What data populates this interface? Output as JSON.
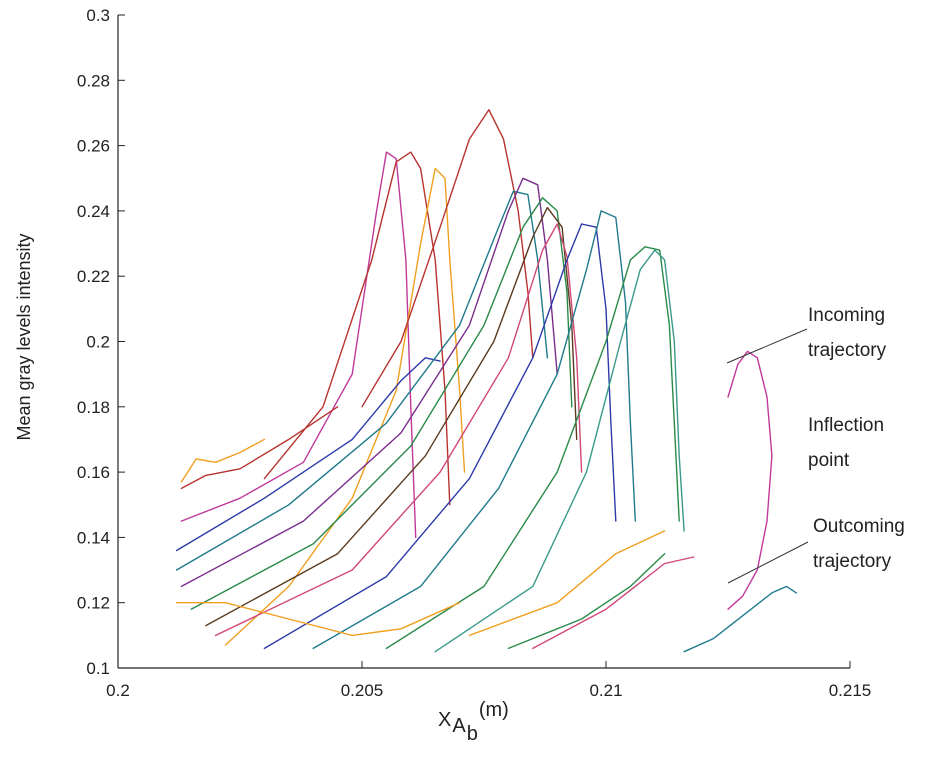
{
  "chart_data": {
    "type": "line",
    "title": "",
    "xlabel": {
      "main": "X",
      "sub1": "A",
      "sub2": "b",
      "unit": "(m)"
    },
    "ylabel": "Mean gray levels intensity",
    "xlim": [
      0.2,
      0.215
    ],
    "ylim": [
      0.1,
      0.3
    ],
    "x_ticks": [
      "0.2",
      "0.205",
      "0.21",
      "0.215"
    ],
    "y_ticks": [
      "0.1",
      "0.12",
      "0.14",
      "0.16",
      "0.18",
      "0.2",
      "0.22",
      "0.24",
      "0.26",
      "0.28",
      "0.3"
    ],
    "grid": false,
    "legend": "none",
    "colors": [
      "#c0399a",
      "#b8332f",
      "#f0a020",
      "#2c3aa8",
      "#2a8a4a",
      "#1f7a8c",
      "#5a3b1f",
      "#7a2d8c",
      "#d04878",
      "#3a9a8a"
    ],
    "series": [
      {
        "color": "#c0399a",
        "points": [
          [
            0.2013,
            0.145
          ],
          [
            0.2025,
            0.152
          ],
          [
            0.2038,
            0.163
          ],
          [
            0.2048,
            0.19
          ],
          [
            0.2053,
            0.24
          ],
          [
            0.2055,
            0.258
          ],
          [
            0.2057,
            0.256
          ],
          [
            0.2059,
            0.225
          ],
          [
            0.206,
            0.18
          ],
          [
            0.2061,
            0.14
          ]
        ]
      },
      {
        "color": "#b8332f",
        "points": [
          [
            0.203,
            0.158
          ],
          [
            0.2042,
            0.18
          ],
          [
            0.2052,
            0.225
          ],
          [
            0.2057,
            0.255
          ],
          [
            0.206,
            0.258
          ],
          [
            0.2062,
            0.253
          ],
          [
            0.2065,
            0.225
          ],
          [
            0.2067,
            0.185
          ],
          [
            0.2068,
            0.15
          ]
        ]
      },
      {
        "color": "#f0a020",
        "points": [
          [
            0.2022,
            0.107
          ],
          [
            0.2035,
            0.125
          ],
          [
            0.2048,
            0.152
          ],
          [
            0.2057,
            0.185
          ],
          [
            0.2062,
            0.23
          ],
          [
            0.2065,
            0.253
          ],
          [
            0.2067,
            0.25
          ],
          [
            0.2068,
            0.225
          ],
          [
            0.207,
            0.185
          ],
          [
            0.2071,
            0.16
          ]
        ]
      },
      {
        "color": "#b8332f",
        "points": [
          [
            0.205,
            0.18
          ],
          [
            0.2058,
            0.2
          ],
          [
            0.2066,
            0.235
          ],
          [
            0.2072,
            0.262
          ],
          [
            0.2076,
            0.271
          ],
          [
            0.2079,
            0.262
          ],
          [
            0.2082,
            0.24
          ],
          [
            0.2084,
            0.215
          ],
          [
            0.2085,
            0.195
          ]
        ]
      },
      {
        "color": "#2c3aa8",
        "points": [
          [
            0.2012,
            0.136
          ],
          [
            0.203,
            0.152
          ],
          [
            0.2048,
            0.17
          ],
          [
            0.2058,
            0.188
          ],
          [
            0.2063,
            0.195
          ],
          [
            0.2066,
            0.194
          ]
        ]
      },
      {
        "color": "#1f7a8c",
        "points": [
          [
            0.2012,
            0.13
          ],
          [
            0.2035,
            0.15
          ],
          [
            0.2055,
            0.175
          ],
          [
            0.207,
            0.205
          ],
          [
            0.2078,
            0.235
          ],
          [
            0.2081,
            0.246
          ],
          [
            0.2084,
            0.245
          ],
          [
            0.2086,
            0.225
          ],
          [
            0.2088,
            0.195
          ]
        ]
      },
      {
        "color": "#7a2d8c",
        "points": [
          [
            0.2013,
            0.125
          ],
          [
            0.2038,
            0.145
          ],
          [
            0.2058,
            0.172
          ],
          [
            0.2072,
            0.205
          ],
          [
            0.208,
            0.24
          ],
          [
            0.2083,
            0.25
          ],
          [
            0.2086,
            0.248
          ],
          [
            0.2088,
            0.225
          ],
          [
            0.209,
            0.19
          ]
        ]
      },
      {
        "color": "#2a8a4a",
        "points": [
          [
            0.2015,
            0.118
          ],
          [
            0.204,
            0.138
          ],
          [
            0.206,
            0.168
          ],
          [
            0.2075,
            0.205
          ],
          [
            0.2083,
            0.235
          ],
          [
            0.2087,
            0.244
          ],
          [
            0.209,
            0.24
          ],
          [
            0.2092,
            0.215
          ],
          [
            0.2093,
            0.18
          ]
        ]
      },
      {
        "color": "#5a3b1f",
        "points": [
          [
            0.2018,
            0.113
          ],
          [
            0.2045,
            0.135
          ],
          [
            0.2063,
            0.165
          ],
          [
            0.2077,
            0.2
          ],
          [
            0.2085,
            0.232
          ],
          [
            0.2088,
            0.241
          ],
          [
            0.2091,
            0.235
          ],
          [
            0.2093,
            0.205
          ],
          [
            0.2094,
            0.17
          ]
        ]
      },
      {
        "color": "#d04878",
        "points": [
          [
            0.202,
            0.11
          ],
          [
            0.2048,
            0.13
          ],
          [
            0.2066,
            0.16
          ],
          [
            0.208,
            0.195
          ],
          [
            0.2087,
            0.228
          ],
          [
            0.209,
            0.236
          ],
          [
            0.2092,
            0.226
          ],
          [
            0.2094,
            0.195
          ],
          [
            0.2095,
            0.16
          ]
        ]
      },
      {
        "color": "#2c3aa8",
        "points": [
          [
            0.203,
            0.106
          ],
          [
            0.2055,
            0.128
          ],
          [
            0.2072,
            0.158
          ],
          [
            0.2085,
            0.195
          ],
          [
            0.2092,
            0.225
          ],
          [
            0.2095,
            0.236
          ],
          [
            0.2098,
            0.235
          ],
          [
            0.21,
            0.21
          ],
          [
            0.2101,
            0.175
          ],
          [
            0.2102,
            0.145
          ]
        ]
      },
      {
        "color": "#1f7a8c",
        "points": [
          [
            0.204,
            0.106
          ],
          [
            0.2062,
            0.125
          ],
          [
            0.2078,
            0.155
          ],
          [
            0.209,
            0.19
          ],
          [
            0.2096,
            0.222
          ],
          [
            0.2099,
            0.24
          ],
          [
            0.2102,
            0.238
          ],
          [
            0.2104,
            0.212
          ],
          [
            0.2105,
            0.175
          ],
          [
            0.2106,
            0.145
          ]
        ]
      },
      {
        "color": "#2a8a4a",
        "points": [
          [
            0.2055,
            0.106
          ],
          [
            0.2075,
            0.125
          ],
          [
            0.209,
            0.16
          ],
          [
            0.21,
            0.2
          ],
          [
            0.2105,
            0.225
          ],
          [
            0.2108,
            0.229
          ],
          [
            0.2111,
            0.228
          ],
          [
            0.2113,
            0.205
          ],
          [
            0.2114,
            0.175
          ],
          [
            0.2115,
            0.145
          ]
        ]
      },
      {
        "color": "#3a9a8a",
        "points": [
          [
            0.2065,
            0.105
          ],
          [
            0.2085,
            0.125
          ],
          [
            0.2096,
            0.16
          ],
          [
            0.2103,
            0.2
          ],
          [
            0.2107,
            0.222
          ],
          [
            0.211,
            0.228
          ],
          [
            0.2112,
            0.225
          ],
          [
            0.2114,
            0.2
          ],
          [
            0.2115,
            0.165
          ],
          [
            0.2116,
            0.142
          ]
        ]
      },
      {
        "color": "#f0a020",
        "points": [
          [
            0.2012,
            0.12
          ],
          [
            0.2022,
            0.12
          ],
          [
            0.2035,
            0.115
          ],
          [
            0.2048,
            0.11
          ],
          [
            0.2058,
            0.112
          ],
          [
            0.207,
            0.12
          ]
        ]
      },
      {
        "color": "#f0a020",
        "points": [
          [
            0.2013,
            0.157
          ],
          [
            0.2016,
            0.164
          ],
          [
            0.202,
            0.163
          ],
          [
            0.2025,
            0.166
          ],
          [
            0.203,
            0.17
          ]
        ]
      },
      {
        "color": "#b8332f",
        "points": [
          [
            0.2013,
            0.155
          ],
          [
            0.2018,
            0.159
          ],
          [
            0.2025,
            0.161
          ],
          [
            0.2035,
            0.17
          ],
          [
            0.2045,
            0.18
          ]
        ]
      },
      {
        "color": "#2a8a4a",
        "points": [
          [
            0.208,
            0.106
          ],
          [
            0.2095,
            0.115
          ],
          [
            0.2105,
            0.125
          ],
          [
            0.2112,
            0.135
          ]
        ]
      },
      {
        "color": "#f0a020",
        "points": [
          [
            0.2072,
            0.11
          ],
          [
            0.209,
            0.12
          ],
          [
            0.2102,
            0.135
          ],
          [
            0.2112,
            0.142
          ]
        ]
      },
      {
        "color": "#d04878",
        "points": [
          [
            0.2085,
            0.106
          ],
          [
            0.21,
            0.118
          ],
          [
            0.2112,
            0.132
          ],
          [
            0.2118,
            0.134
          ]
        ]
      },
      {
        "color": "#c0399a",
        "points": [
          [
            0.2125,
            0.183
          ],
          [
            0.2127,
            0.193
          ],
          [
            0.2129,
            0.197
          ],
          [
            0.2131,
            0.195
          ],
          [
            0.2133,
            0.183
          ],
          [
            0.2134,
            0.165
          ],
          [
            0.2133,
            0.145
          ],
          [
            0.2131,
            0.13
          ],
          [
            0.2128,
            0.122
          ],
          [
            0.2125,
            0.118
          ]
        ]
      },
      {
        "color": "#1f7a8c",
        "points": [
          [
            0.2116,
            0.105
          ],
          [
            0.2122,
            0.109
          ],
          [
            0.2128,
            0.116
          ],
          [
            0.2134,
            0.123
          ],
          [
            0.2137,
            0.125
          ],
          [
            0.2139,
            0.123
          ]
        ]
      }
    ],
    "annotations": {
      "incoming": [
        "Incoming",
        "trajectory"
      ],
      "inflection": [
        "Inflection",
        "point"
      ],
      "outcoming": [
        "Outcoming",
        "trajectory"
      ]
    }
  }
}
